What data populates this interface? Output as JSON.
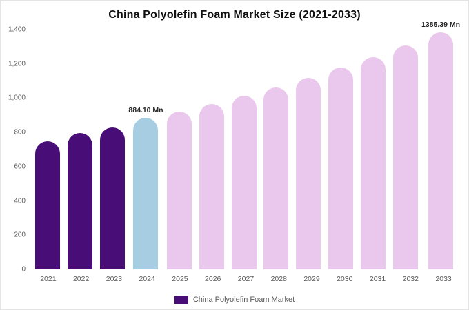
{
  "chart_data": {
    "type": "bar",
    "title": "China Polyolefin Foam Market Size (2021-2033)",
    "unit": "Mn",
    "categories": [
      "2021",
      "2022",
      "2023",
      "2024",
      "2025",
      "2026",
      "2027",
      "2028",
      "2029",
      "2030",
      "2031",
      "2032",
      "2033"
    ],
    "values": [
      748,
      795,
      830,
      884.1,
      922,
      965,
      1012,
      1063,
      1120,
      1178,
      1238,
      1306,
      1385.39
    ],
    "bar_colors": [
      "#480d77",
      "#480d77",
      "#480d77",
      "#a6cde2",
      "#eac7ec",
      "#eac7ec",
      "#eac7ec",
      "#eac7ec",
      "#eac7ec",
      "#eac7ec",
      "#eac7ec",
      "#eac7ec",
      "#eac7ec"
    ],
    "data_labels": [
      "",
      "",
      "",
      "884.10 Mn",
      "",
      "",
      "",
      "",
      "",
      "",
      "",
      "",
      "1385.39 Mn"
    ],
    "ylim": [
      0,
      1400
    ],
    "yticks": [
      {
        "value": 0,
        "label": "0"
      },
      {
        "value": 200,
        "label": "200"
      },
      {
        "value": 400,
        "label": "400"
      },
      {
        "value": 600,
        "label": "600"
      },
      {
        "value": 800,
        "label": "800"
      },
      {
        "value": 1000,
        "label": "1,000"
      },
      {
        "value": 1200,
        "label": "1,200"
      },
      {
        "value": 1400,
        "label": "1,400"
      }
    ],
    "grid": false,
    "xlabel": "",
    "ylabel": "",
    "legend_position": "bottom",
    "legend": [
      {
        "label": "China Polyolefin Foam Market",
        "color": "#480d77"
      }
    ]
  }
}
